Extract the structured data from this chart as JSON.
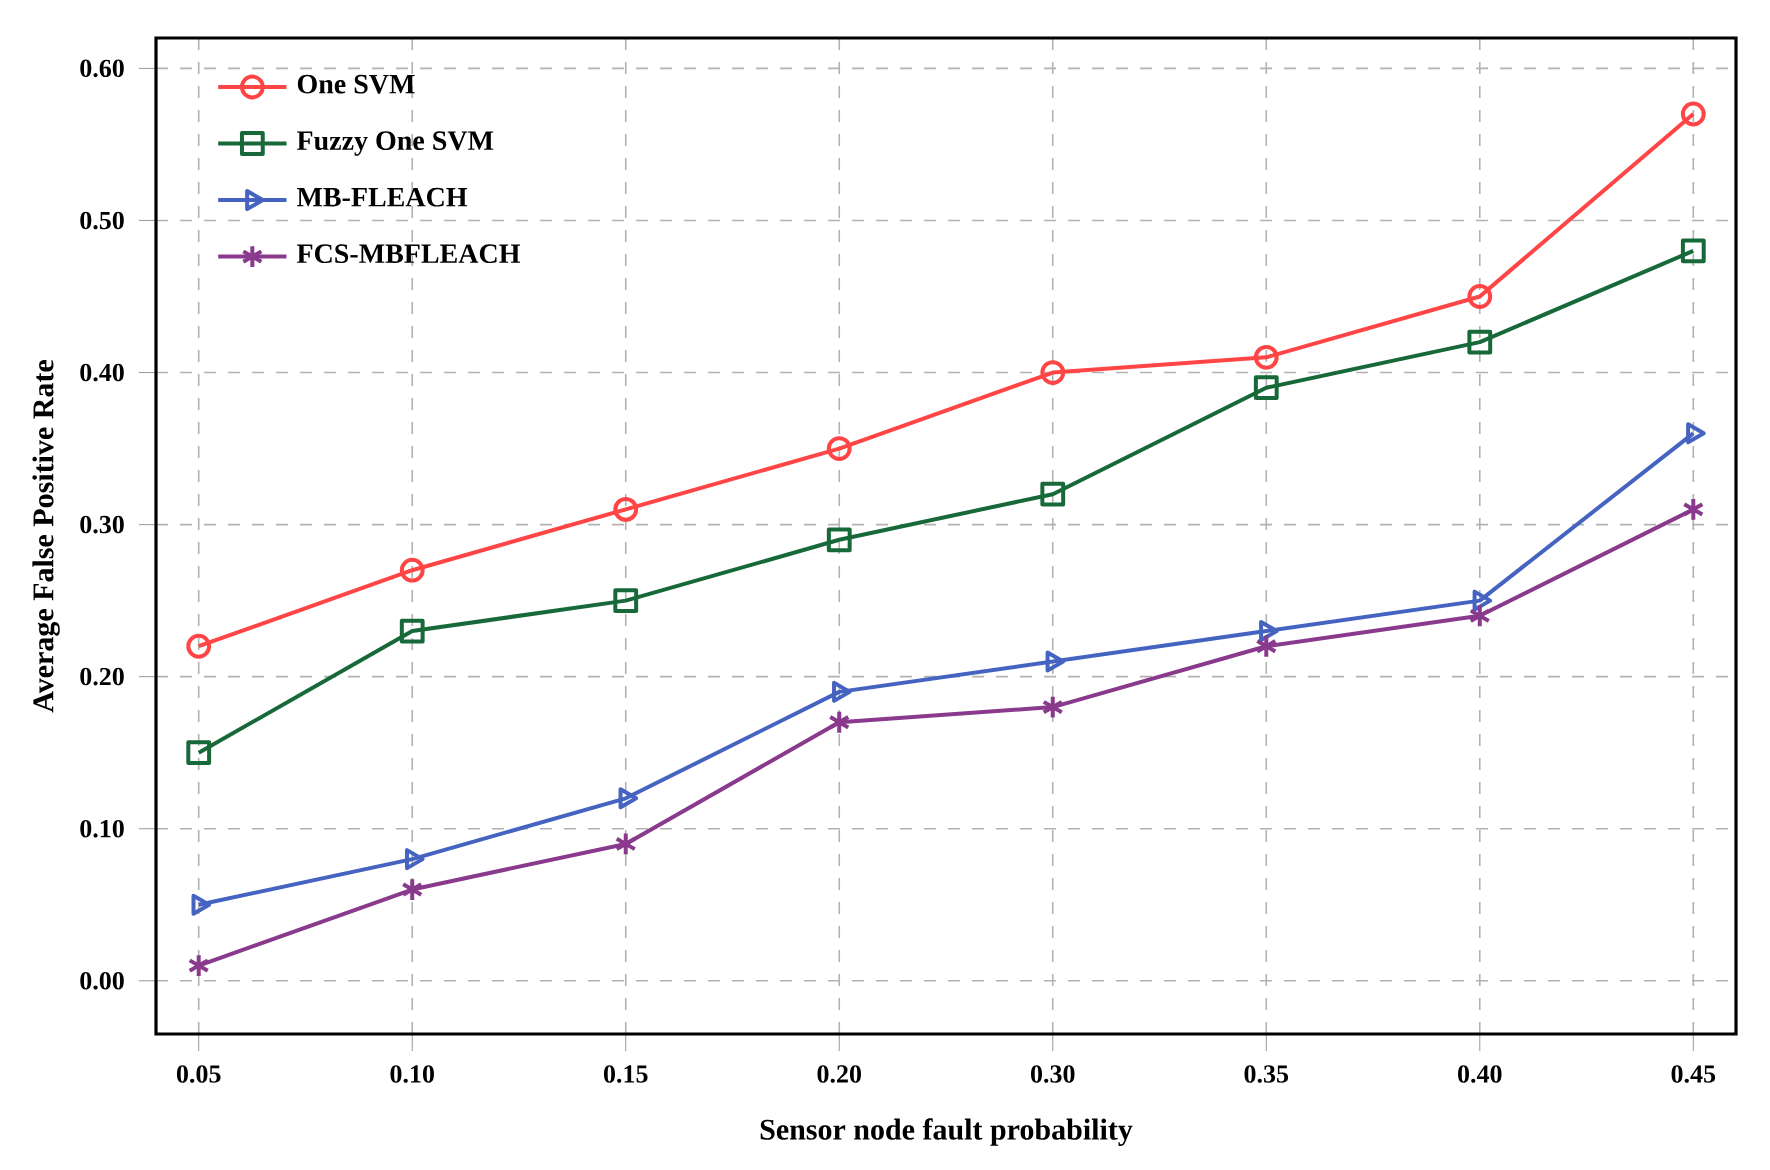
{
  "chart_data": {
    "type": "line",
    "xlabel": "Sensor node fault probability",
    "ylabel": "Average False Positive Rate",
    "categories": [
      "0.05",
      "0.10",
      "0.15",
      "0.20",
      "0.30",
      "0.35",
      "0.40",
      "0.45"
    ],
    "series": [
      {
        "name": "One SVM",
        "color": "#ff4545",
        "marker": "circle",
        "values": [
          0.22,
          0.27,
          0.31,
          0.35,
          0.4,
          0.41,
          0.45,
          0.57
        ]
      },
      {
        "name": "Fuzzy One SVM",
        "color": "#17693a",
        "marker": "square",
        "values": [
          0.15,
          0.23,
          0.25,
          0.29,
          0.32,
          0.39,
          0.42,
          0.48
        ]
      },
      {
        "name": "MB-FLEACH",
        "color": "#4563c0",
        "marker": "triangle",
        "values": [
          0.05,
          0.08,
          0.12,
          0.19,
          0.21,
          0.23,
          0.25,
          0.36
        ]
      },
      {
        "name": "FCS-MBFLEACH",
        "color": "#8a3a8c",
        "marker": "cross",
        "values": [
          0.01,
          0.06,
          0.09,
          0.17,
          0.18,
          0.22,
          0.24,
          0.31
        ]
      }
    ],
    "ylim": [
      -0.035,
      0.62
    ],
    "yticks": [
      {
        "value": 0,
        "label": "0.00"
      },
      {
        "value": 0.1,
        "label": "0.10"
      },
      {
        "value": 0.2,
        "label": "0.20"
      },
      {
        "value": 0.3,
        "label": "0.30"
      },
      {
        "value": 0.4,
        "label": "0.40"
      },
      {
        "value": 0.5,
        "label": "0.50"
      },
      {
        "value": 0.6,
        "label": "0.60"
      }
    ],
    "grid": true,
    "legend": "top left",
    "line_style": "solid"
  }
}
